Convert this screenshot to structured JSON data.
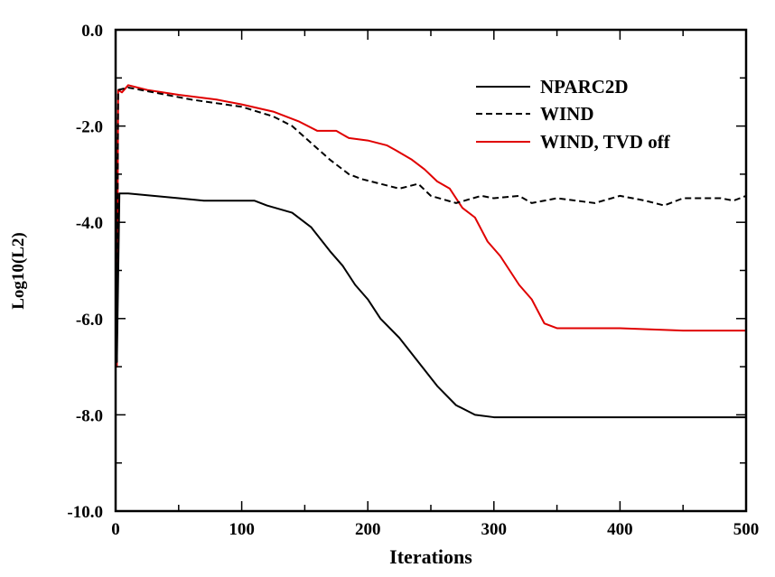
{
  "chart_data": {
    "type": "line",
    "title": "",
    "xlabel": "Iterations",
    "ylabel": "Log10(L2)",
    "xlim": [
      0,
      500
    ],
    "ylim": [
      -10,
      0
    ],
    "xticks": [
      "0",
      "100",
      "200",
      "300",
      "400",
      "500"
    ],
    "yticks": [
      "0.0",
      "-2.0",
      "-4.0",
      "-6.0",
      "-8.0",
      "-10.0"
    ],
    "grid": false,
    "legend_position": "top-right",
    "series": [
      {
        "name": "NPARC2D",
        "color": "#000000",
        "style": "solid",
        "x": [
          0,
          1,
          3,
          10,
          50,
          70,
          110,
          120,
          140,
          155,
          170,
          180,
          190,
          200,
          210,
          225,
          240,
          255,
          270,
          285,
          300,
          400,
          500
        ],
        "y": [
          -3.3,
          -6.9,
          -3.4,
          -3.4,
          -3.5,
          -3.55,
          -3.55,
          -3.65,
          -3.8,
          -4.1,
          -4.6,
          -4.9,
          -5.3,
          -5.6,
          -6.0,
          -6.4,
          -6.9,
          -7.4,
          -7.8,
          -8.0,
          -8.05,
          -8.05,
          -8.05
        ]
      },
      {
        "name": "WIND",
        "color": "#000000",
        "style": "dashed",
        "x": [
          0,
          1,
          2,
          10,
          30,
          60,
          100,
          125,
          140,
          155,
          170,
          185,
          195,
          210,
          225,
          240,
          250,
          270,
          290,
          300,
          320,
          330,
          350,
          380,
          400,
          420,
          435,
          450,
          480,
          490,
          500
        ],
        "y": [
          -1.2,
          -6.9,
          -1.25,
          -1.2,
          -1.3,
          -1.45,
          -1.6,
          -1.8,
          -2.0,
          -2.35,
          -2.7,
          -3.0,
          -3.1,
          -3.2,
          -3.3,
          -3.2,
          -3.45,
          -3.6,
          -3.45,
          -3.5,
          -3.45,
          -3.6,
          -3.5,
          -3.6,
          -3.45,
          -3.55,
          -3.65,
          -3.5,
          -3.5,
          -3.55,
          -3.45
        ]
      },
      {
        "name": "WIND, TVD off",
        "color": "#e00000",
        "style": "solid",
        "x": [
          0,
          1,
          2,
          5,
          10,
          25,
          50,
          80,
          100,
          125,
          145,
          160,
          175,
          185,
          200,
          215,
          222,
          235,
          245,
          255,
          265,
          275,
          285,
          295,
          305,
          320,
          330,
          340,
          350,
          400,
          450,
          500
        ],
        "y": [
          -1.2,
          -7.0,
          -1.25,
          -1.3,
          -1.15,
          -1.25,
          -1.35,
          -1.45,
          -1.55,
          -1.7,
          -1.9,
          -2.1,
          -2.1,
          -2.25,
          -2.3,
          -2.4,
          -2.5,
          -2.7,
          -2.9,
          -3.15,
          -3.3,
          -3.7,
          -3.9,
          -4.4,
          -4.7,
          -5.3,
          -5.6,
          -6.1,
          -6.2,
          -6.2,
          -6.25,
          -6.25
        ]
      }
    ]
  }
}
